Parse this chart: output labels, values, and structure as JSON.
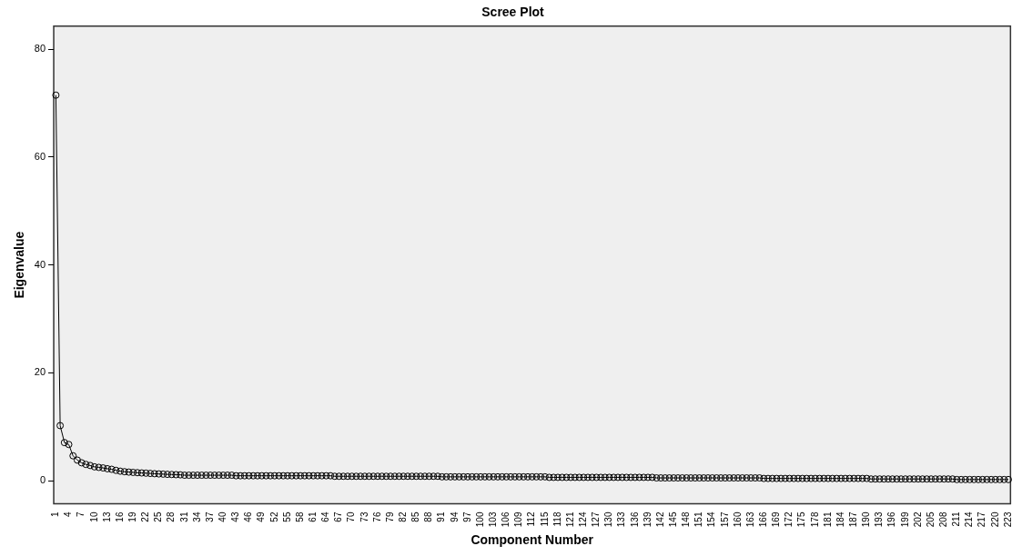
{
  "chart_data": {
    "type": "line",
    "title": "Scree Plot",
    "xlabel": "Component Number",
    "ylabel": "Eigenvalue",
    "categories": [
      "1",
      null,
      null,
      "4",
      null,
      null,
      "7",
      null,
      null,
      "10",
      null,
      null,
      "13",
      null,
      null,
      "16",
      null,
      null,
      "19",
      null,
      null,
      "22",
      null,
      null,
      "25",
      null,
      null,
      "28",
      null,
      null,
      "31",
      null,
      null,
      "34",
      null,
      null,
      "37",
      null,
      null,
      "40",
      null,
      null,
      "43",
      null,
      null,
      "46",
      null,
      null,
      "49",
      null,
      null,
      "52",
      null,
      null,
      "55",
      null,
      null,
      "58",
      null,
      null,
      "61",
      null,
      null,
      "64",
      null,
      null,
      "67",
      null,
      null,
      "70",
      null,
      null,
      "73",
      null,
      null,
      "76",
      null,
      null,
      "79",
      null,
      null,
      "82",
      null,
      null,
      "85",
      null,
      null,
      "88",
      null,
      null,
      "91",
      null,
      null,
      "94",
      null,
      null,
      "97",
      null,
      null,
      "100",
      null,
      null,
      "103",
      null,
      null,
      "106",
      null,
      null,
      "109",
      null,
      null,
      "112",
      null,
      null,
      "115",
      null,
      null,
      "118",
      null,
      null,
      "121",
      null,
      null,
      "124",
      null,
      null,
      "127",
      null,
      null,
      "130",
      null,
      null,
      "133",
      null,
      null,
      "136",
      null,
      null,
      "139",
      null,
      null,
      "142",
      null,
      null,
      "145",
      null,
      null,
      "148",
      null,
      null,
      "151",
      null,
      null,
      "154",
      null,
      null,
      "157",
      null,
      null,
      "160",
      null,
      null,
      "163",
      null,
      null,
      "166",
      null,
      null,
      "169",
      null,
      null,
      "172",
      null,
      null,
      "175",
      null,
      null,
      "178",
      null,
      null,
      "181",
      null,
      null,
      "184",
      null,
      null,
      "187",
      null,
      null,
      "190",
      null,
      null,
      "193",
      null,
      null,
      "196",
      null,
      null,
      "199",
      null,
      null,
      "202",
      null,
      null,
      "205",
      null,
      null,
      "208",
      null,
      null,
      "211",
      null,
      null,
      "214",
      null,
      null,
      "217",
      null,
      null,
      "220",
      null,
      null,
      "223"
    ],
    "series": [
      {
        "color": "#000000",
        "values": [
          71.5,
          10.2,
          7.05,
          6.7,
          4.6,
          3.8,
          3.3,
          3.0,
          2.8,
          2.55,
          2.45,
          2.35,
          2.2,
          2.1,
          1.9,
          1.75,
          1.65,
          1.58,
          1.52,
          1.47,
          1.42,
          1.38,
          1.33,
          1.28,
          1.24,
          1.2,
          1.16,
          1.13,
          1.1,
          1.07,
          1.0,
          1.0,
          1.0,
          1.0,
          1.0,
          1.0,
          1.0,
          1.0,
          1.0,
          1.0,
          1.0,
          1.0,
          0.9,
          0.9,
          0.9,
          0.9,
          0.9,
          0.9,
          0.9,
          0.9,
          0.9,
          0.9,
          0.9,
          0.9,
          0.9,
          0.9,
          0.9,
          0.9,
          0.9,
          0.9,
          0.9,
          0.9,
          0.9,
          0.9,
          0.9,
          0.8,
          0.8,
          0.8,
          0.8,
          0.8,
          0.8,
          0.8,
          0.8,
          0.8,
          0.8,
          0.8,
          0.8,
          0.8,
          0.8,
          0.8,
          0.8,
          0.8,
          0.8,
          0.8,
          0.8,
          0.8,
          0.8,
          0.8,
          0.8,
          0.8,
          0.7,
          0.7,
          0.7,
          0.7,
          0.7,
          0.7,
          0.7,
          0.7,
          0.7,
          0.7,
          0.7,
          0.7,
          0.7,
          0.7,
          0.7,
          0.7,
          0.7,
          0.7,
          0.7,
          0.7,
          0.7,
          0.7,
          0.7,
          0.7,
          0.7,
          0.6,
          0.6,
          0.6,
          0.6,
          0.6,
          0.6,
          0.6,
          0.6,
          0.6,
          0.6,
          0.6,
          0.6,
          0.6,
          0.6,
          0.6,
          0.6,
          0.6,
          0.6,
          0.6,
          0.6,
          0.6,
          0.6,
          0.6,
          0.6,
          0.6,
          0.5,
          0.5,
          0.5,
          0.5,
          0.5,
          0.5,
          0.5,
          0.5,
          0.5,
          0.5,
          0.5,
          0.5,
          0.5,
          0.5,
          0.5,
          0.5,
          0.5,
          0.5,
          0.5,
          0.5,
          0.5,
          0.5,
          0.5,
          0.5,
          0.5,
          0.4,
          0.4,
          0.4,
          0.4,
          0.4,
          0.4,
          0.4,
          0.4,
          0.4,
          0.4,
          0.4,
          0.4,
          0.4,
          0.4,
          0.4,
          0.4,
          0.4,
          0.4,
          0.4,
          0.4,
          0.4,
          0.4,
          0.4,
          0.4,
          0.4,
          0.3,
          0.3,
          0.3,
          0.3,
          0.3,
          0.3,
          0.3,
          0.3,
          0.3,
          0.3,
          0.3,
          0.3,
          0.3,
          0.3,
          0.3,
          0.3,
          0.3,
          0.3,
          0.3,
          0.3,
          0.2,
          0.2,
          0.2,
          0.2,
          0.2,
          0.2,
          0.2,
          0.2,
          0.2,
          0.2,
          0.2,
          0.2,
          0.2
        ]
      }
    ],
    "ylim": [
      -4.3,
      84.3
    ],
    "yticks": [
      0,
      20,
      40,
      60,
      80
    ],
    "grid": false,
    "legend": false,
    "marker": "circle",
    "line_style": "solid"
  }
}
